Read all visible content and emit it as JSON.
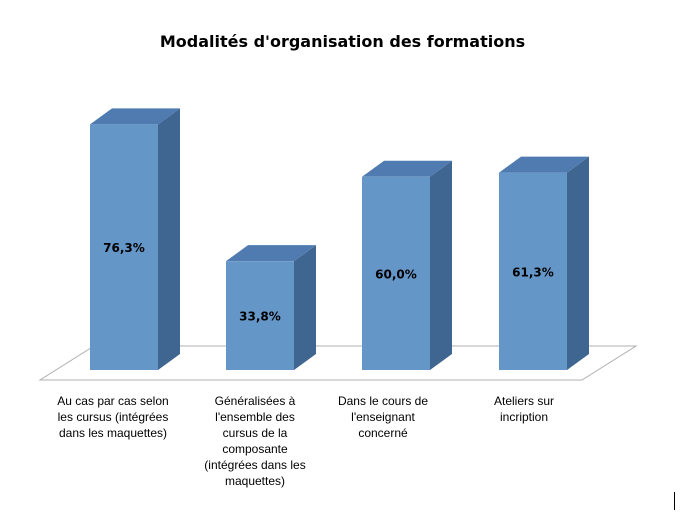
{
  "chart_data": {
    "type": "bar",
    "title": "Modalités d'organisation des formations",
    "categories": [
      "Au cas par cas selon les cursus (intégrées dans les maquettes)",
      "Généralisées à l'ensemble des cursus de la composante (intégrées dans les maquettes)",
      "Dans le cours de l'enseignant concerné",
      "Ateliers sur incription"
    ],
    "category_lines": [
      [
        "Au cas par cas selon",
        "les cursus (intégrées",
        "dans les maquettes)"
      ],
      [
        "Généralisées à",
        "l'ensemble des",
        "cursus de la",
        "composante",
        "(intégrées dans les",
        "maquettes)"
      ],
      [
        "Dans le cours de",
        "l'enseignant",
        "concerné"
      ],
      [
        "Ateliers sur",
        "incription"
      ]
    ],
    "values": [
      76.3,
      33.8,
      60.0,
      61.3
    ],
    "data_labels": [
      "76,3%",
      "33,8%",
      "60,0%",
      "61,3%"
    ],
    "unit": "%",
    "ylim": [
      0,
      100
    ],
    "grid": false,
    "legend": "none",
    "style": "3d-column",
    "colors": {
      "front": "#6596c8",
      "side": "#3f6690",
      "top": "#4f7bb0",
      "floor_stroke": "#b0b0b0"
    }
  }
}
